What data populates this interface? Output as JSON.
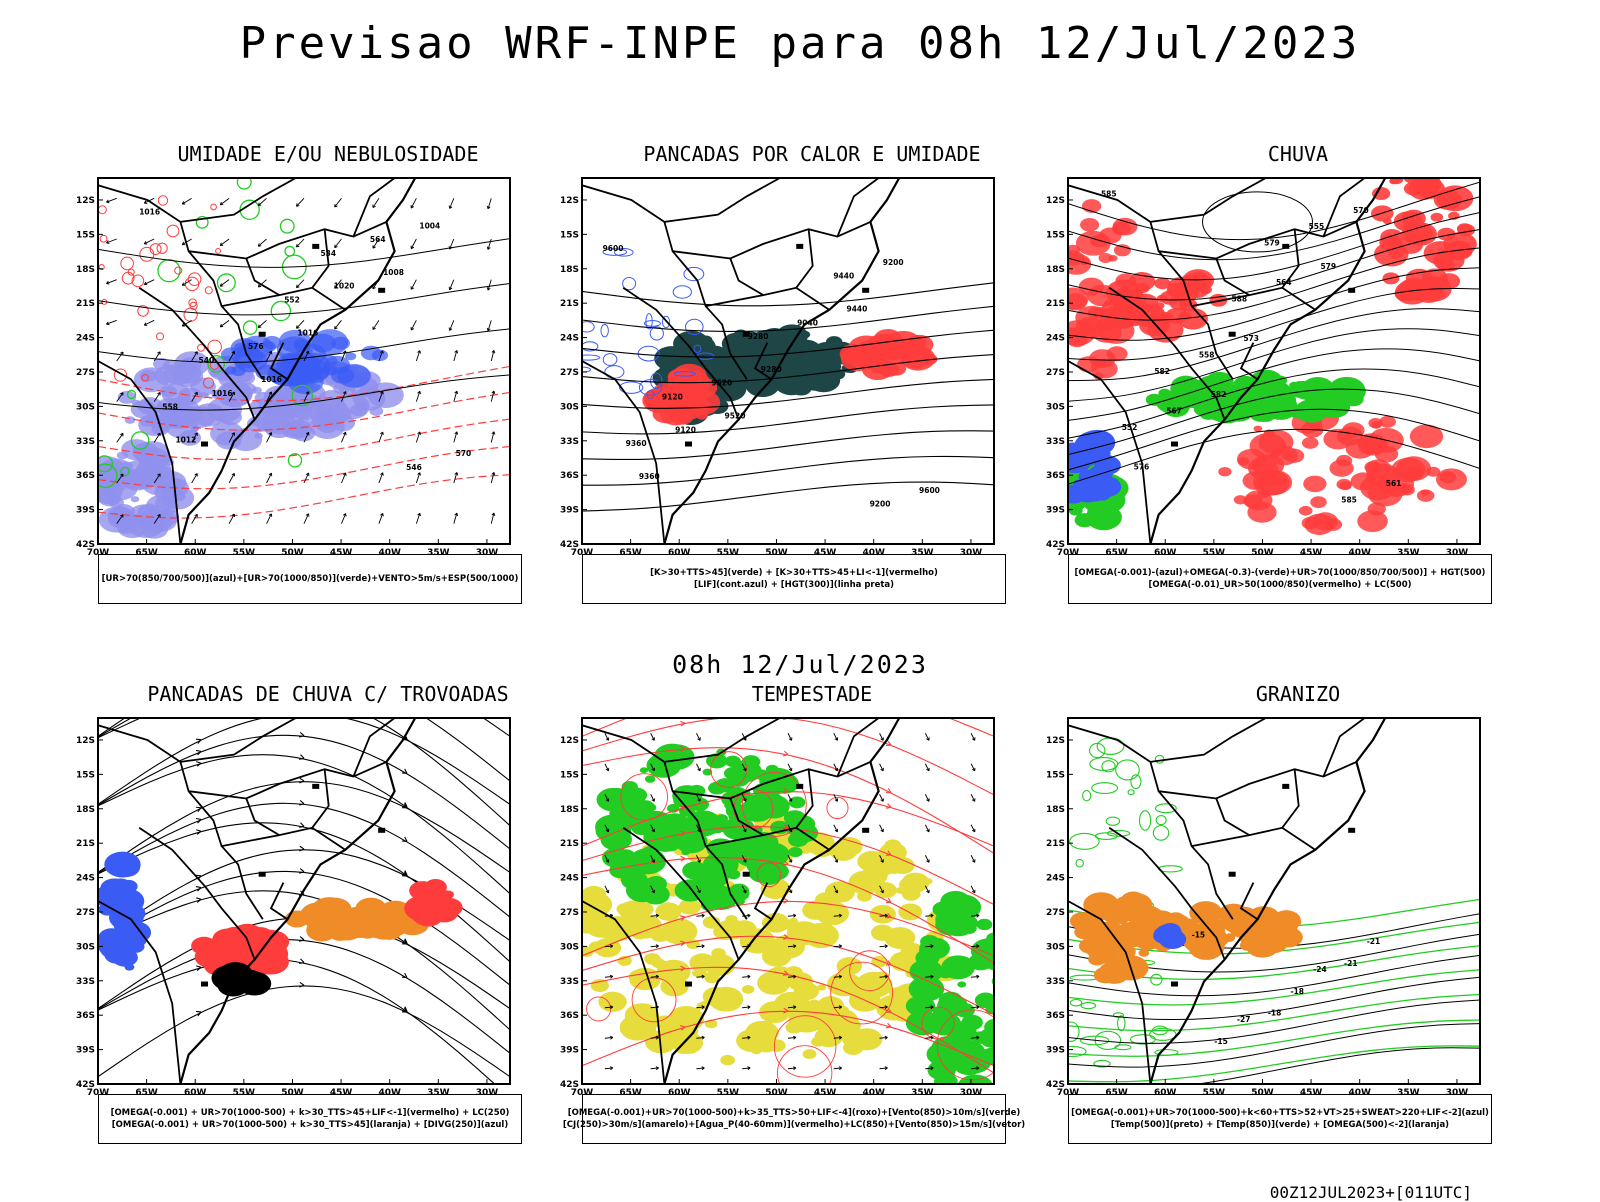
{
  "header": {
    "title": "Previsao WRF-INPE  para 08h 12/Jul/2023",
    "mid_date": "08h 12/Jul/2023",
    "run_stamp": "00Z12JUL2023+[011UTC]"
  },
  "axes": {
    "lat_labels": [
      "12S",
      "15S",
      "18S",
      "21S",
      "24S",
      "27S",
      "30S",
      "33S",
      "36S",
      "39S",
      "42S"
    ],
    "lon_labels": [
      "70W",
      "65W",
      "60W",
      "55W",
      "50W",
      "45W",
      "40W",
      "35W",
      "30W"
    ]
  },
  "colors": {
    "blue": "#3b5bf5",
    "green": "#22cc22",
    "red": "#ff3c3c",
    "orange": "#f08c28",
    "yellow": "#e6dc3c",
    "darkteal": "#1e4646",
    "lavender": "#9090ee",
    "black": "#000000"
  },
  "panels": [
    {
      "id": "umidade",
      "title": "UMIDADE E/OU NEBULOSIDADE",
      "legend": [
        "[UR>70(850/700/500)](azul)+[UR>70(1000/850)](verde)+VENTO>5m/s+ESP(500/1000)"
      ],
      "contour_labels": [
        "1016",
        "1016",
        "1008",
        "1012",
        "1016",
        "1004",
        "1016",
        "1020",
        "570",
        "576",
        "564",
        "558",
        "552",
        "546",
        "540",
        "534"
      ]
    },
    {
      "id": "pancadas-calor",
      "title": "PANCADAS POR CALOR E UMIDADE",
      "legend": [
        "[K>30+TTS>45](verde) + [K>30+TTS>45+LI<-1](vermelho)",
        "[LIF](cont.azul) + [HGT(300)](linha preta)"
      ],
      "contour_labels": [
        "9600",
        "9520",
        "9440",
        "9360",
        "9280",
        "9200",
        "9120",
        "9040",
        "9600",
        "9520",
        "9440",
        "9360",
        "9280",
        "9200",
        "9120"
      ]
    },
    {
      "id": "chuva",
      "title": "CHUVA",
      "legend": [
        "[OMEGA(-0.001)-(azul)+OMEGA(-0.3)-(verde)+UR>70(1000/850/700/500)] + HGT(500)",
        "[OMEGA(-0.01)_UR>50(1000/850)(vermelho) + LC(500)"
      ],
      "contour_labels": [
        "585",
        "582",
        "579",
        "576",
        "573",
        "570",
        "567",
        "564",
        "561",
        "558",
        "555",
        "552",
        "588",
        "585",
        "582",
        "579"
      ]
    },
    {
      "id": "trovoadas",
      "title": "PANCADAS DE CHUVA C/ TROVOADAS",
      "legend": [
        "[OMEGA(-0.001) + UR>70(1000-500) + k>30_TTS>45+LIF<-1](vermelho) + LC(250)",
        "[OMEGA(-0.001) + UR>70(1000-500) + k>30_TTS>45](laranja) + [DIVG(250)](azul)"
      ],
      "contour_labels": []
    },
    {
      "id": "tempestade",
      "title": "TEMPESTADE",
      "legend": [
        "[OMEGA(-0.001)+UR>70(1000-500)+k>35_TTS>50+LIF<-4](roxo)+[Vento(850)>10m/s](verde)",
        "[CJ(250)>30m/s](amarelo)+[Agua_P(40-60mm)](vermelho)+LC(850)+[Vento(850)>15m/s](vetor)"
      ],
      "contour_labels": []
    },
    {
      "id": "granizo",
      "title": "GRANIZO",
      "legend": [
        "[OMEGA(-0.001)+UR>70(1000-500)+k<60+TTS>52+VT>25+SWEAT>220+LIF<-2](azul)",
        "[Temp(500)](preto) + [Temp(850)](verde) + [OMEGA(500)<-2](laranja)"
      ],
      "contour_labels": [
        "-15",
        "-18",
        "-21",
        "-15",
        "-18",
        "-21",
        "-27",
        "-24"
      ]
    }
  ]
}
